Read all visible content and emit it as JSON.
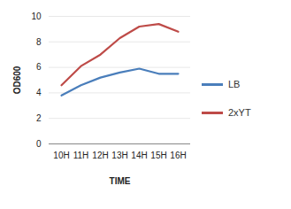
{
  "chart_data": {
    "type": "line",
    "x_label": "TIME",
    "y_label": "OD600",
    "categories": [
      "10H",
      "11H",
      "12H",
      "13H",
      "14H",
      "15H",
      "16H"
    ],
    "series": [
      {
        "name": "LB",
        "color": "#4a7ebb",
        "values": [
          3.8,
          4.6,
          5.2,
          5.6,
          5.9,
          5.5,
          5.5
        ]
      },
      {
        "name": "2xYT",
        "color": "#be4b48",
        "values": [
          4.6,
          6.1,
          7.0,
          8.3,
          9.2,
          9.4,
          8.8
        ]
      }
    ],
    "ylim": [
      0,
      10
    ],
    "yticks": [
      0,
      2,
      4,
      6,
      8,
      10
    ],
    "grid": true,
    "legend": "right"
  }
}
